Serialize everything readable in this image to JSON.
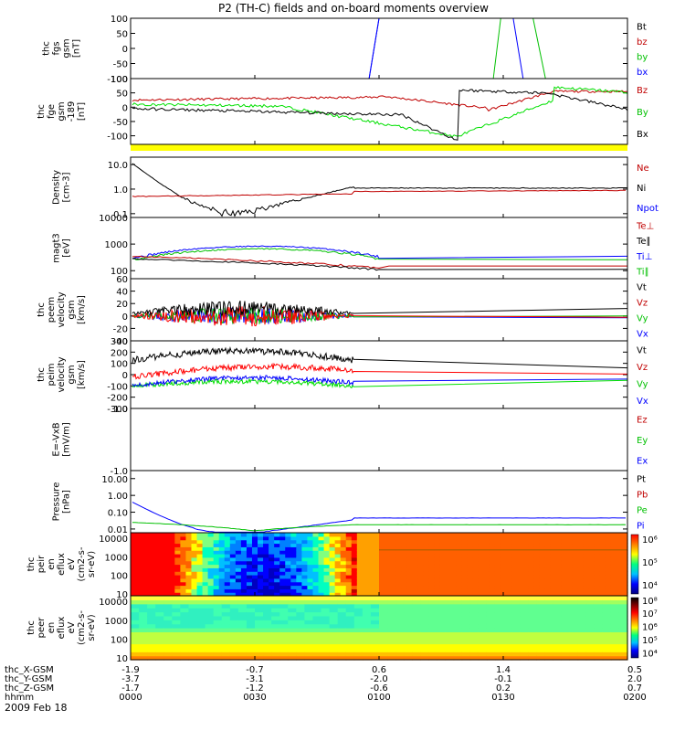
{
  "title": "P2 (TH-C) fields and on-board moments overview",
  "date_label": "2009 Feb 18",
  "chart_data": [
    {
      "type": "line",
      "name": "thc-fgs-gsm",
      "ylabel_lines": [
        "thc",
        "fgs",
        "gsm",
        "[nT]"
      ],
      "yticks": [
        {
          "v": 100,
          "t": "100"
        },
        {
          "v": 50,
          "t": "50"
        },
        {
          "v": 0,
          "t": "0"
        },
        {
          "v": -50,
          "t": "-50"
        },
        {
          "v": -100,
          "t": "-100"
        }
      ],
      "legend": [
        {
          "text": "Bt",
          "color": "#000000"
        },
        {
          "text": "bz",
          "color": "#c00000"
        },
        {
          "text": "by",
          "color": "#00c000"
        },
        {
          "text": "bx",
          "color": "#0000ff"
        }
      ]
    },
    {
      "type": "line",
      "name": "thc-fge-gsm",
      "ylabel_lines": [
        "thc",
        "fge",
        "gsm",
        "-189",
        "[nT]"
      ],
      "yticks": [
        {
          "v": 100,
          "t": "100"
        },
        {
          "v": 50,
          "t": "50"
        },
        {
          "v": 0,
          "t": "0"
        },
        {
          "v": -50,
          "t": "-50"
        },
        {
          "v": -100,
          "t": "-100"
        }
      ],
      "legend": [
        {
          "text": "Bz",
          "color": "#c00000"
        },
        {
          "text": "By",
          "color": "#00c000"
        },
        {
          "text": "Bx",
          "color": "#000000"
        }
      ]
    },
    {
      "type": "line",
      "name": "density",
      "ylabel_lines": [
        "Density",
        "[cm-3]"
      ],
      "yticks": [
        {
          "v": 10,
          "t": "10.0"
        },
        {
          "v": 1,
          "t": "1.0"
        },
        {
          "v": 0.1,
          "t": "0.1"
        }
      ],
      "legend": [
        {
          "text": "Ne",
          "color": "#c00000"
        },
        {
          "text": "Ni",
          "color": "#000000"
        },
        {
          "text": "Npot",
          "color": "#0000ff"
        }
      ]
    },
    {
      "type": "line",
      "name": "temperature",
      "ylabel_lines": [
        "magt3",
        "[eV]"
      ],
      "yticks": [
        {
          "v": 10000,
          "t": "10000"
        },
        {
          "v": 1000,
          "t": "1000"
        },
        {
          "v": 100,
          "t": "100"
        }
      ],
      "legend": [
        {
          "text": "Te⊥",
          "color": "#c00000"
        },
        {
          "text": "Te∥",
          "color": "#000000"
        },
        {
          "text": "Ti⊥",
          "color": "#0000ff"
        },
        {
          "text": "Ti∥",
          "color": "#00c000"
        }
      ]
    },
    {
      "type": "line",
      "name": "peem-velocity",
      "ylabel_lines": [
        "thc",
        "peem",
        "velocity",
        "gsm",
        "[km/s]"
      ],
      "yticks": [
        {
          "v": 60,
          "t": "60"
        },
        {
          "v": 40,
          "t": "40"
        },
        {
          "v": 20,
          "t": "20"
        },
        {
          "v": 0,
          "t": "0"
        },
        {
          "v": -20,
          "t": "-20"
        },
        {
          "v": -40,
          "t": "-40"
        }
      ],
      "legend": [
        {
          "text": "Vt",
          "color": "#000000"
        },
        {
          "text": "Vz",
          "color": "#c00000"
        },
        {
          "text": "Vy",
          "color": "#00c000"
        },
        {
          "text": "Vx",
          "color": "#0000ff"
        }
      ]
    },
    {
      "type": "line",
      "name": "peim-velocity",
      "ylabel_lines": [
        "thc",
        "peim",
        "velocity",
        "gsm",
        "[km/s]"
      ],
      "yticks": [
        {
          "v": 300,
          "t": "300"
        },
        {
          "v": 200,
          "t": "200"
        },
        {
          "v": 100,
          "t": "100"
        },
        {
          "v": 0,
          "t": "0"
        },
        {
          "v": -100,
          "t": "-100"
        },
        {
          "v": -200,
          "t": "-200"
        },
        {
          "v": -300,
          "t": "-300"
        }
      ],
      "legend": [
        {
          "text": "Vt",
          "color": "#000000"
        },
        {
          "text": "Vz",
          "color": "#c00000"
        },
        {
          "text": "Vy",
          "color": "#00c000"
        },
        {
          "text": "Vx",
          "color": "#0000ff"
        }
      ]
    },
    {
      "type": "line",
      "name": "efield",
      "ylabel_lines": [
        "E=-VxB",
        "[mV/m]"
      ],
      "yticks": [
        {
          "v": 1,
          "t": "1.0"
        },
        {
          "v": -1,
          "t": "-1.0"
        }
      ],
      "legend": [
        {
          "text": "Ez",
          "color": "#c00000"
        },
        {
          "text": "Ey",
          "color": "#00c000"
        },
        {
          "text": "Ex",
          "color": "#0000ff"
        }
      ]
    },
    {
      "type": "line",
      "name": "pressure",
      "ylabel_lines": [
        "Pressure",
        "[nPa]"
      ],
      "yticks": [
        {
          "v": 10,
          "t": "10.00"
        },
        {
          "v": 1,
          "t": "1.00"
        },
        {
          "v": 0.1,
          "t": "0.10"
        },
        {
          "v": 0.01,
          "t": "0.01"
        }
      ],
      "legend": [
        {
          "text": "Pt",
          "color": "#000000"
        },
        {
          "text": "Pb",
          "color": "#c00000"
        },
        {
          "text": "Pe",
          "color": "#00c000"
        },
        {
          "text": "Pi",
          "color": "#0000ff"
        }
      ]
    },
    {
      "type": "heatmap",
      "name": "peir-eflux",
      "ylabel_lines": [
        "thc",
        "peir",
        "en",
        "eflux",
        "eV",
        "(cm2-s-",
        "sr-eV)"
      ],
      "yticks": [
        {
          "v": 10000,
          "t": "10000"
        },
        {
          "v": 1000,
          "t": "1000"
        },
        {
          "v": 100,
          "t": "100"
        },
        {
          "v": 10,
          "t": "10"
        }
      ],
      "colorbar_ticks": [
        {
          "v": 6,
          "t": "10⁶"
        },
        {
          "v": 5,
          "t": "10⁵"
        },
        {
          "v": 4,
          "t": "10⁴"
        }
      ]
    },
    {
      "type": "heatmap",
      "name": "peer-eflux",
      "ylabel_lines": [
        "thc",
        "peer",
        "en",
        "eflux",
        "eV",
        "(cm2-s-",
        "sr-eV)"
      ],
      "yticks": [
        {
          "v": 10000,
          "t": "10000"
        },
        {
          "v": 1000,
          "t": "1000"
        },
        {
          "v": 100,
          "t": "100"
        },
        {
          "v": 10,
          "t": "10"
        }
      ],
      "colorbar_ticks": [
        {
          "v": 8,
          "t": "10⁸"
        },
        {
          "v": 7,
          "t": "10⁷"
        },
        {
          "v": 6,
          "t": "10⁶"
        },
        {
          "v": 5,
          "t": "10⁵"
        },
        {
          "v": 4,
          "t": "10⁴"
        }
      ]
    }
  ],
  "xaxis": {
    "row_labels": [
      "thc_X-GSM",
      "thc_Y-GSM",
      "thc_Z-GSM",
      "hhmm"
    ],
    "columns": [
      [
        "-1.9",
        "-3.7",
        "-1.7",
        "0000"
      ],
      [
        "-0.7",
        "-3.1",
        "-1.2",
        "0030"
      ],
      [
        "0.6",
        "-2.0",
        "-0.6",
        "0100"
      ],
      [
        "1.4",
        "-0.1",
        "0.2",
        "0130"
      ],
      [
        "0.5",
        "2.0",
        "0.7",
        "0200"
      ]
    ]
  }
}
